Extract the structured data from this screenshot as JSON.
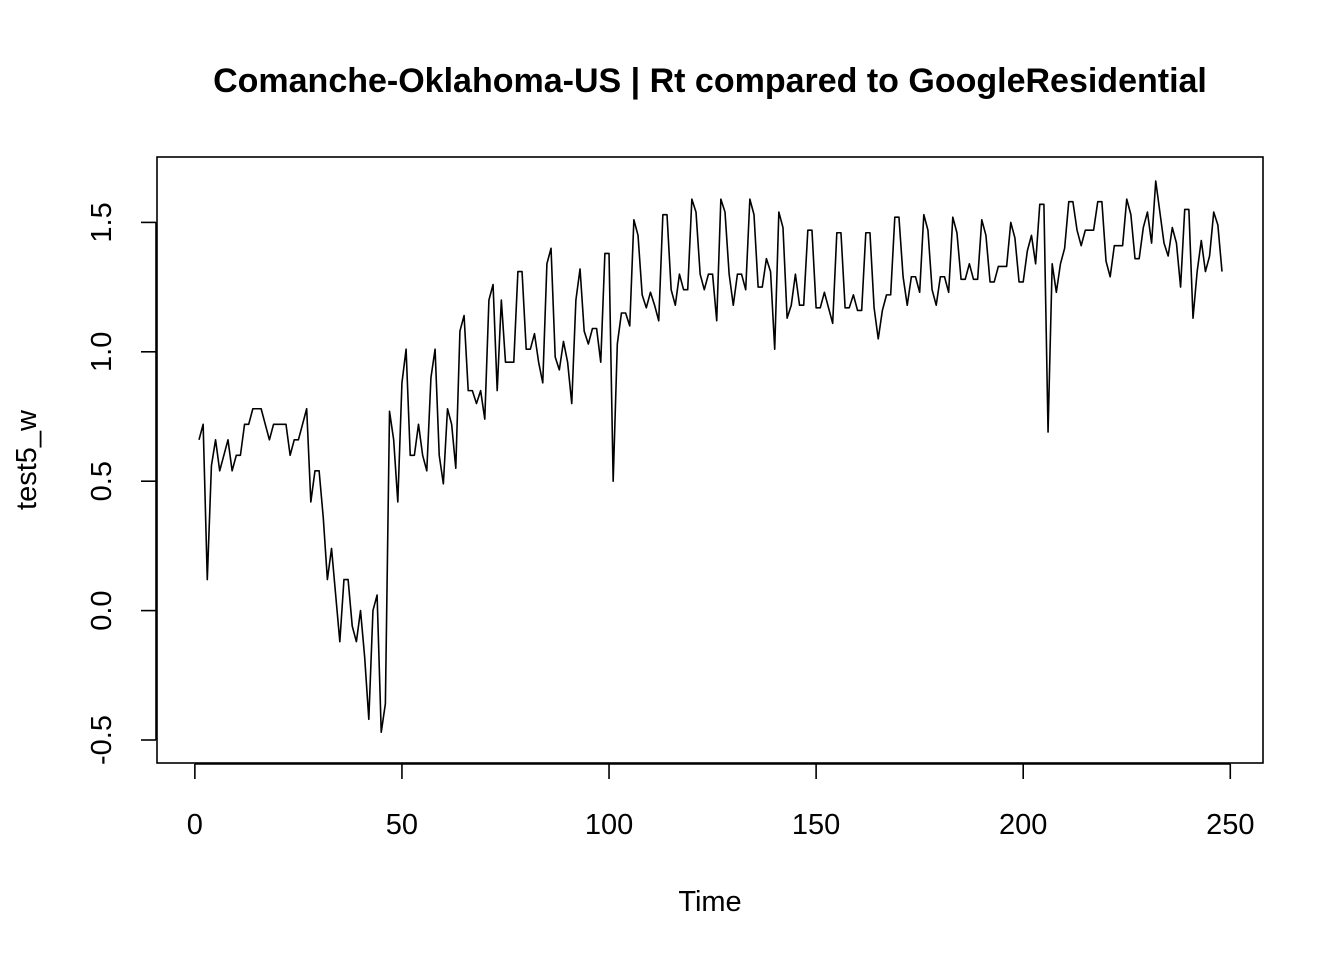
{
  "chart_data": {
    "type": "line",
    "title": "Comanche-Oklahoma-US | Rt compared to GoogleResidential",
    "xlabel": "Time",
    "ylabel": "test5_w",
    "xlim": [
      1,
      248
    ],
    "ylim": [
      -0.5,
      1.66
    ],
    "x_ticks": [
      0,
      50,
      100,
      150,
      200,
      250
    ],
    "y_ticks": [
      -0.5,
      0.0,
      0.5,
      1.0,
      1.5
    ],
    "x_tick_labels": [
      "0",
      "50",
      "100",
      "150",
      "200",
      "250"
    ],
    "y_tick_labels": [
      "-0.5",
      "0.0",
      "0.5",
      "1.0",
      "1.5"
    ],
    "grid": false,
    "line_color": "#000000",
    "series": [
      {
        "x_start": 1,
        "values": [
          0.66,
          0.72,
          0.12,
          0.56,
          0.66,
          0.54,
          0.6,
          0.66,
          0.54,
          0.6,
          0.6,
          0.72,
          0.72,
          0.78,
          0.78,
          0.78,
          0.72,
          0.66,
          0.72,
          0.72,
          0.72,
          0.72,
          0.6,
          0.66,
          0.66,
          0.72,
          0.78,
          0.42,
          0.54,
          0.54,
          0.36,
          0.12,
          0.24,
          0.06,
          -0.12,
          0.12,
          0.12,
          -0.06,
          -0.12,
          0.0,
          -0.18,
          -0.42,
          0.0,
          0.06,
          -0.47,
          -0.36,
          0.77,
          0.66,
          0.42,
          0.88,
          1.01,
          0.6,
          0.6,
          0.72,
          0.6,
          0.54,
          0.9,
          1.01,
          0.6,
          0.49,
          0.78,
          0.72,
          0.55,
          1.08,
          1.14,
          0.85,
          0.85,
          0.8,
          0.85,
          0.74,
          1.2,
          1.26,
          0.85,
          1.2,
          0.96,
          0.96,
          0.96,
          1.31,
          1.31,
          1.01,
          1.01,
          1.07,
          0.96,
          0.88,
          1.34,
          1.4,
          0.98,
          0.93,
          1.04,
          0.96,
          0.8,
          1.2,
          1.32,
          1.08,
          1.03,
          1.09,
          1.09,
          0.96,
          1.38,
          1.38,
          0.5,
          1.03,
          1.15,
          1.15,
          1.1,
          1.51,
          1.45,
          1.22,
          1.17,
          1.23,
          1.18,
          1.12,
          1.53,
          1.53,
          1.24,
          1.18,
          1.3,
          1.24,
          1.24,
          1.59,
          1.54,
          1.3,
          1.24,
          1.3,
          1.3,
          1.12,
          1.59,
          1.54,
          1.3,
          1.18,
          1.3,
          1.3,
          1.24,
          1.59,
          1.53,
          1.25,
          1.25,
          1.36,
          1.31,
          1.01,
          1.54,
          1.48,
          1.13,
          1.18,
          1.3,
          1.18,
          1.18,
          1.47,
          1.47,
          1.17,
          1.17,
          1.23,
          1.17,
          1.11,
          1.46,
          1.46,
          1.17,
          1.17,
          1.22,
          1.16,
          1.16,
          1.46,
          1.46,
          1.17,
          1.05,
          1.16,
          1.22,
          1.22,
          1.52,
          1.52,
          1.29,
          1.18,
          1.29,
          1.29,
          1.23,
          1.53,
          1.47,
          1.24,
          1.18,
          1.29,
          1.29,
          1.23,
          1.52,
          1.46,
          1.28,
          1.28,
          1.34,
          1.28,
          1.28,
          1.51,
          1.45,
          1.27,
          1.27,
          1.33,
          1.33,
          1.33,
          1.5,
          1.44,
          1.27,
          1.27,
          1.39,
          1.45,
          1.34,
          1.57,
          1.57,
          0.69,
          1.34,
          1.23,
          1.34,
          1.4,
          1.58,
          1.58,
          1.47,
          1.41,
          1.47,
          1.47,
          1.47,
          1.58,
          1.58,
          1.35,
          1.29,
          1.41,
          1.41,
          1.41,
          1.59,
          1.53,
          1.36,
          1.36,
          1.48,
          1.54,
          1.42,
          1.66,
          1.54,
          1.42,
          1.37,
          1.48,
          1.42,
          1.25,
          1.55,
          1.55,
          1.13,
          1.31,
          1.43,
          1.31,
          1.37,
          1.54,
          1.49,
          1.31
        ]
      }
    ]
  }
}
